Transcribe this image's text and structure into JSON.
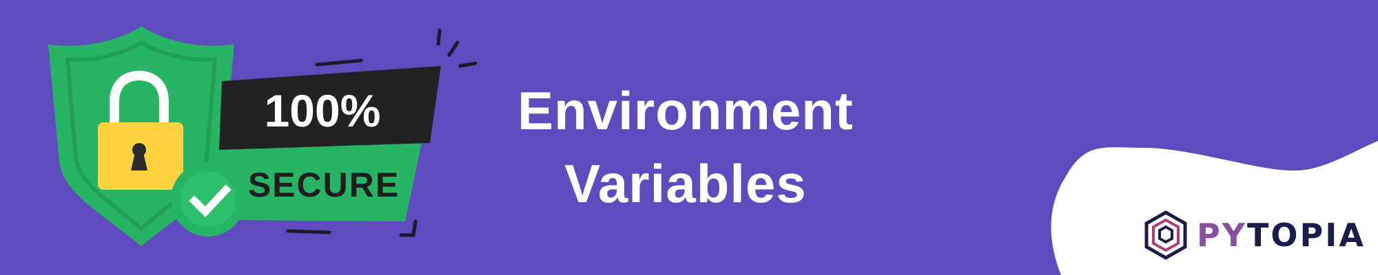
{
  "badge": {
    "percent_text": "100%",
    "secure_text": "SECURE",
    "icons": [
      "shield-icon",
      "padlock-icon",
      "checkmark-icon"
    ]
  },
  "title": {
    "line1": "Environment",
    "line2": "Variables"
  },
  "logo": {
    "prefix": "PY",
    "suffix": "TOPIA",
    "icon": "pytopia-hexagon-icon"
  },
  "colors": {
    "background": "#5f4bbd",
    "shield_green": "#27b565",
    "badge_black": "#222222",
    "lock_yellow": "#ffd23f",
    "white": "#ffffff",
    "logo_navy": "#1c1c4a",
    "logo_purple": "#8a4f9e"
  }
}
